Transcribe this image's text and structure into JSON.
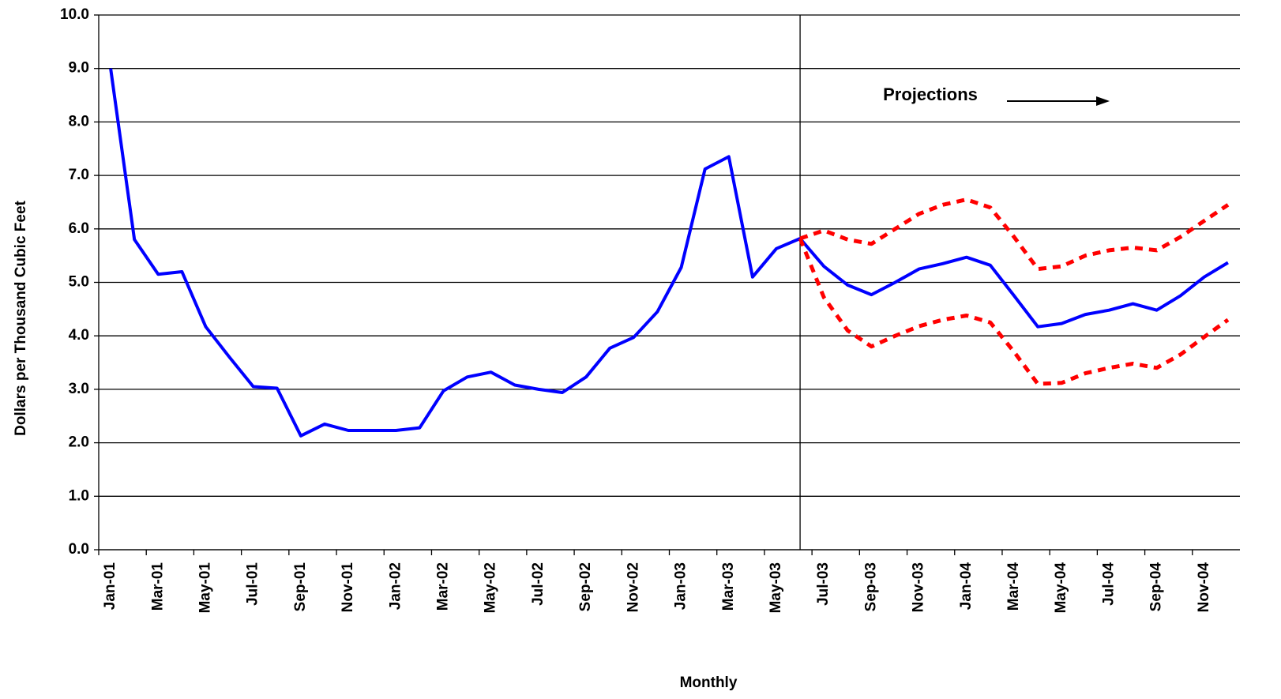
{
  "chart_data": {
    "type": "line",
    "y_label": "Dollars per Thousand Cubic Feet",
    "x_label": "Monthly",
    "annotation": "Projections",
    "categories": [
      "Jan-01",
      null,
      "Mar-01",
      null,
      "May-01",
      null,
      "Jul-01",
      null,
      "Sep-01",
      null,
      "Nov-01",
      null,
      "Jan-02",
      null,
      "Mar-02",
      null,
      "May-02",
      null,
      "Jul-02",
      null,
      "Sep-02",
      null,
      "Nov-02",
      null,
      "Jan-03",
      null,
      "Mar-03",
      null,
      "May-03",
      null,
      "Jul-03",
      null,
      "Sep-03",
      null,
      "Nov-03",
      null,
      "Jan-04",
      null,
      "Mar-04",
      null,
      "May-04",
      null,
      "Jul-04",
      null,
      "Sep-04",
      null,
      "Nov-04",
      null
    ],
    "series": [
      {
        "color": "#0000ff",
        "dashed": false,
        "values": [
          9.0,
          5.8,
          5.15,
          5.2,
          4.17,
          3.6,
          3.05,
          3.02,
          2.13,
          2.35,
          2.23,
          2.23,
          2.23,
          2.28,
          2.97,
          3.23,
          3.32,
          3.08,
          3.0,
          2.94,
          3.23,
          3.77,
          3.97,
          4.45,
          5.28,
          7.12,
          7.35,
          5.1,
          5.63,
          5.82,
          5.3,
          4.95,
          4.77,
          5.0,
          5.25,
          5.35,
          5.47,
          5.32,
          4.75,
          4.17,
          4.23,
          4.4,
          4.48,
          4.6,
          4.48,
          4.75,
          5.1,
          5.37
        ]
      },
      {
        "color": "#ff0000",
        "dashed": true,
        "values": [
          null,
          null,
          null,
          null,
          null,
          null,
          null,
          null,
          null,
          null,
          null,
          null,
          null,
          null,
          null,
          null,
          null,
          null,
          null,
          null,
          null,
          null,
          null,
          null,
          null,
          null,
          null,
          null,
          null,
          5.82,
          5.97,
          5.8,
          5.72,
          6.0,
          6.28,
          6.45,
          6.55,
          6.4,
          5.85,
          5.25,
          5.3,
          5.5,
          5.6,
          5.65,
          5.6,
          5.85,
          6.15,
          6.45
        ]
      },
      {
        "color": "#ff0000",
        "dashed": true,
        "values": [
          null,
          null,
          null,
          null,
          null,
          null,
          null,
          null,
          null,
          null,
          null,
          null,
          null,
          null,
          null,
          null,
          null,
          null,
          null,
          null,
          null,
          null,
          null,
          null,
          null,
          null,
          null,
          null,
          null,
          5.82,
          4.72,
          4.1,
          3.8,
          4.0,
          4.18,
          4.3,
          4.38,
          4.25,
          3.7,
          3.1,
          3.12,
          3.3,
          3.4,
          3.48,
          3.4,
          3.65,
          3.98,
          4.3
        ]
      }
    ],
    "ylim": [
      0,
      10
    ],
    "yticks": [
      {
        "value": 0,
        "label": "0.0"
      },
      {
        "value": 1,
        "label": "1.0"
      },
      {
        "value": 2,
        "label": "2.0"
      },
      {
        "value": 3,
        "label": "3.0"
      },
      {
        "value": 4,
        "label": "4.0"
      },
      {
        "value": 5,
        "label": "5.0"
      },
      {
        "value": 6,
        "label": "6.0"
      },
      {
        "value": 7,
        "label": "7.0"
      },
      {
        "value": 8,
        "label": "8.0"
      },
      {
        "value": 9,
        "label": "9.0"
      },
      {
        "value": 10,
        "label": "10.0"
      }
    ],
    "grid": true
  }
}
